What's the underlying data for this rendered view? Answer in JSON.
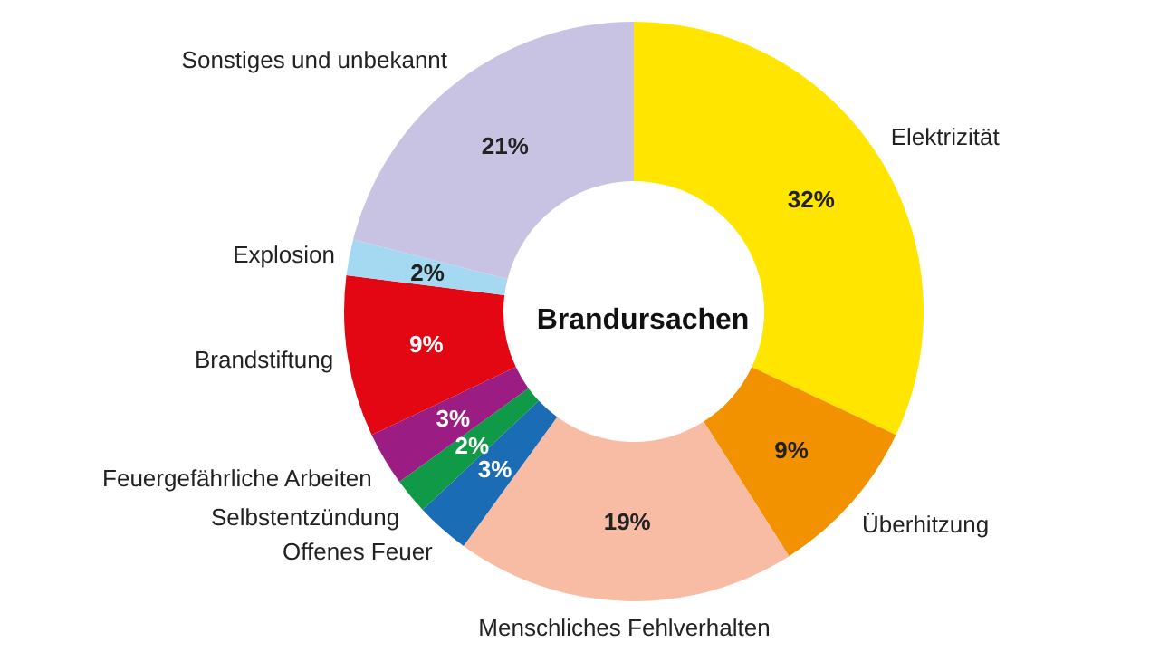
{
  "chart_data": {
    "type": "donut",
    "title": "Brandursachen",
    "categories": [
      "Elektrizität",
      "Überhitzung",
      "Menschliches Fehlverhalten",
      "Offenes Feuer",
      "Selbstentzündung",
      "Feuergefährliche Arbeiten",
      "Brandstiftung",
      "Explosion",
      "Sonstiges und unbekannt"
    ],
    "values": [
      32,
      9,
      19,
      3,
      2,
      3,
      9,
      2,
      21
    ],
    "value_labels": [
      "32%",
      "9%",
      "19%",
      "3%",
      "2%",
      "3%",
      "9%",
      "2%",
      "21%"
    ],
    "colors": [
      "#ffe500",
      "#f39200",
      "#f8bca4",
      "#1a6cb5",
      "#109a48",
      "#9b1d83",
      "#e30613",
      "#a5d9f2",
      "#c9c3e3"
    ],
    "legend": false
  }
}
